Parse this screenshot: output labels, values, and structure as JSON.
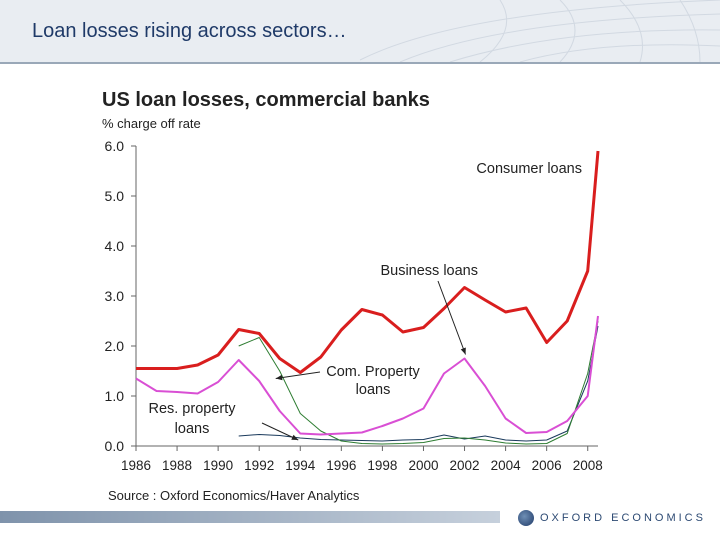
{
  "slide": {
    "title": "Loan losses rising across sectors…"
  },
  "logo": {
    "text": "OXFORD ECONOMICS"
  },
  "chart_data": {
    "type": "line",
    "title": "US loan losses, commercial banks",
    "ylabel": "% charge off rate",
    "source": "Source : Oxford Economics/Haver Analytics",
    "ylim": [
      0,
      6
    ],
    "xlim": [
      1986,
      2008.5
    ],
    "yticks": [
      "0.0",
      "1.0",
      "2.0",
      "3.0",
      "4.0",
      "5.0",
      "6.0"
    ],
    "xticks": [
      "1986",
      "1988",
      "1990",
      "1992",
      "1994",
      "1996",
      "1998",
      "2000",
      "2002",
      "2004",
      "2006",
      "2008"
    ],
    "grid": false,
    "series": [
      {
        "name": "Consumer loans",
        "color": "#d91e1e",
        "x": [
          1986,
          1987,
          1988,
          1989,
          1990,
          1991,
          1992,
          1993,
          1994,
          1995,
          1996,
          1997,
          1998,
          1999,
          2000,
          2001,
          2002,
          2003,
          2004,
          2005,
          2006,
          2007,
          2008,
          2008.5
        ],
        "values": [
          1.55,
          1.55,
          1.55,
          1.62,
          1.82,
          2.33,
          2.25,
          1.75,
          1.47,
          1.78,
          2.32,
          2.73,
          2.62,
          2.28,
          2.37,
          2.75,
          3.17,
          2.92,
          2.68,
          2.76,
          2.07,
          2.5,
          3.5,
          5.9
        ]
      },
      {
        "name": "Business loans",
        "color": "#d94fd4",
        "x": [
          1986,
          1987,
          1988,
          1989,
          1990,
          1991,
          1992,
          1993,
          1994,
          1995,
          1996,
          1997,
          1998,
          1999,
          2000,
          2001,
          2002,
          2003,
          2004,
          2005,
          2006,
          2007,
          2008,
          2008.5
        ],
        "values": [
          1.35,
          1.1,
          1.08,
          1.05,
          1.28,
          1.72,
          1.3,
          0.7,
          0.25,
          0.23,
          0.25,
          0.27,
          0.4,
          0.55,
          0.75,
          1.45,
          1.75,
          1.2,
          0.55,
          0.26,
          0.28,
          0.5,
          1.0,
          2.6
        ]
      },
      {
        "name": "Com. Property loans",
        "color": "#2e7d32",
        "x": [
          1991,
          1992,
          1993,
          1994,
          1995,
          1996,
          1997,
          1998,
          1999,
          2000,
          2001,
          2002,
          2003,
          2004,
          2005,
          2006,
          2007,
          2008,
          2008.5
        ],
        "values": [
          2.0,
          2.17,
          1.5,
          0.65,
          0.3,
          0.1,
          0.05,
          0.04,
          0.05,
          0.07,
          0.15,
          0.16,
          0.12,
          0.06,
          0.04,
          0.05,
          0.25,
          1.45,
          2.5
        ]
      },
      {
        "name": "Res. property loans",
        "color": "#1a3a5c",
        "x": [
          1991,
          1992,
          1993,
          1994,
          1995,
          1996,
          1997,
          1998,
          1999,
          2000,
          2001,
          2002,
          2003,
          2004,
          2005,
          2006,
          2007,
          2008,
          2008.5
        ],
        "values": [
          0.2,
          0.23,
          0.21,
          0.16,
          0.13,
          0.12,
          0.11,
          0.1,
          0.12,
          0.13,
          0.22,
          0.14,
          0.2,
          0.12,
          0.1,
          0.12,
          0.3,
          1.3,
          2.4
        ]
      }
    ],
    "annotations": [
      {
        "text": "Consumer loans",
        "series": "Consumer loans"
      },
      {
        "text": "Business loans",
        "series": "Business loans",
        "arrow_to_x": 2002
      },
      {
        "text": "Com. Property",
        "text2": "loans",
        "series": "Com. Property loans",
        "arrow_to_x": 1993
      },
      {
        "text": "Res. property",
        "text2": "loans",
        "series": "Res. property loans",
        "arrow_to_x": 1994
      }
    ]
  }
}
